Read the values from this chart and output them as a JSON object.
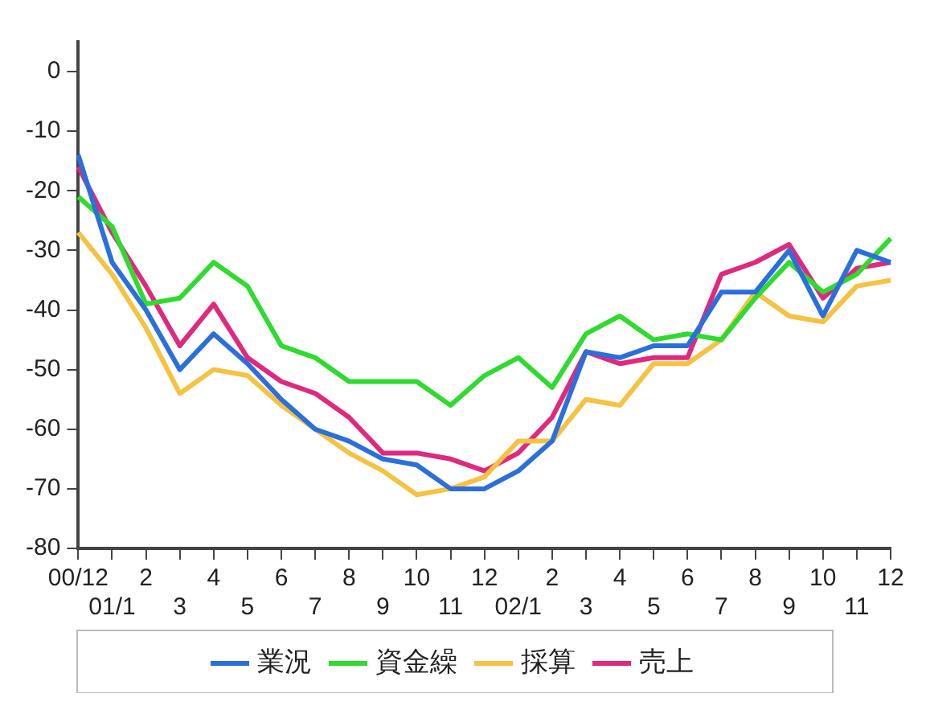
{
  "chart_data": {
    "type": "line",
    "categories": [
      "00/12",
      "01/1",
      "2",
      "3",
      "4",
      "5",
      "6",
      "7",
      "8",
      "9",
      "10",
      "11",
      "12",
      "02/1",
      "2",
      "3",
      "4",
      "5",
      "6",
      "7",
      "8",
      "9",
      "10",
      "11",
      "12"
    ],
    "series": [
      {
        "name": "業況",
        "color": "#2a6fdb",
        "values": [
          -14,
          -32,
          -40,
          -50,
          -44,
          -49,
          -55,
          -60,
          -62,
          -65,
          -66,
          -70,
          -70,
          -67,
          -62,
          -47,
          -48,
          -46,
          -46,
          -37,
          -37,
          -30,
          -41,
          -30,
          -32
        ]
      },
      {
        "name": "資金繰",
        "color": "#2edb2e",
        "values": [
          -21,
          -26,
          -39,
          -38,
          -32,
          -36,
          -46,
          -48,
          -52,
          -52,
          -52,
          -56,
          -51,
          -48,
          -53,
          -44,
          -41,
          -45,
          -44,
          -45,
          -38,
          -32,
          -37,
          -34,
          -28
        ]
      },
      {
        "name": "採算",
        "color": "#f5c242",
        "values": [
          -27,
          -34,
          -43,
          -54,
          -50,
          -51,
          -56,
          -60,
          -64,
          -67,
          -71,
          -70,
          -68,
          -62,
          -62,
          -55,
          -56,
          -49,
          -49,
          -45,
          -37,
          -41,
          -42,
          -36,
          -35
        ]
      },
      {
        "name": "売上",
        "color": "#e0287e",
        "values": [
          -16,
          -27,
          -36,
          -46,
          -39,
          -48,
          -52,
          -54,
          -58,
          -64,
          -64,
          -65,
          -67,
          -64,
          -58,
          -47,
          -49,
          -48,
          -48,
          -34,
          -32,
          -29,
          -38,
          -33,
          -32
        ]
      }
    ],
    "ylim": [
      -80,
      5
    ],
    "yticks": [
      0,
      -10,
      -20,
      -30,
      -40,
      -50,
      -60,
      -70,
      -80
    ],
    "grid": false,
    "legend": "bottom",
    "marker": "none",
    "line_style": "solid"
  }
}
